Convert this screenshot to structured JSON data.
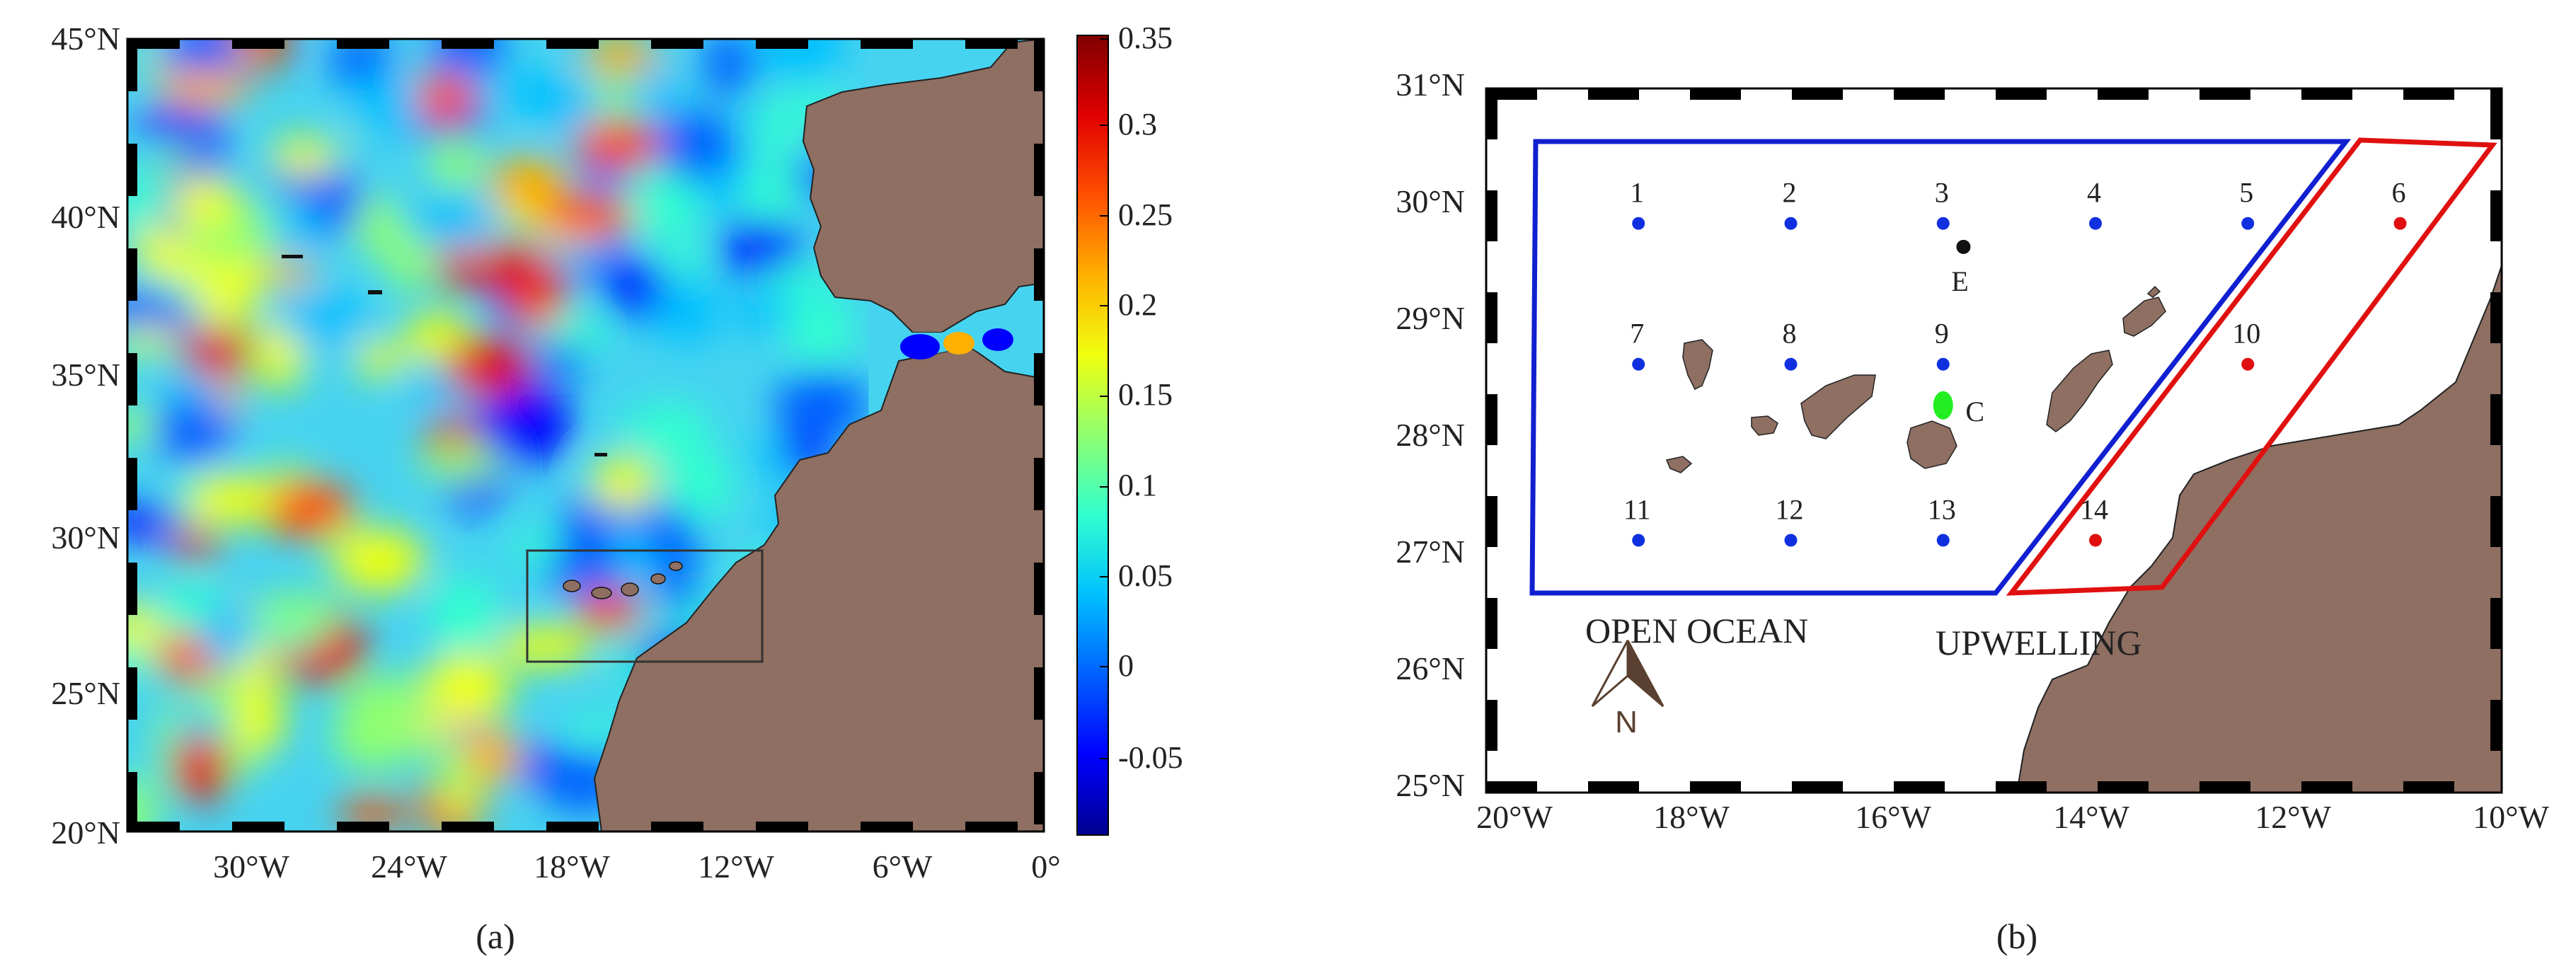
{
  "panel_a": {
    "caption": "(a)",
    "lat_labels": [
      "45°N",
      "40°N",
      "35°N",
      "30°N",
      "25°N",
      "20°N"
    ],
    "lon_labels": [
      "30°W",
      "24°W",
      "18°W",
      "12°W",
      "6°W",
      "0°"
    ],
    "colorbar_ticks": [
      "0.35",
      "0.3",
      "0.25",
      "0.2",
      "0.15",
      "0.1",
      "0.05",
      "0",
      "-0.05"
    ],
    "colormap": [
      "#00008f",
      "#0000ff",
      "#0060ff",
      "#00c0ff",
      "#30ffcf",
      "#90ff70",
      "#f0ff10",
      "#ffb000",
      "#ff5000",
      "#e00000",
      "#800000"
    ],
    "land_color": "#8e6f62"
  },
  "panel_b": {
    "caption": "(b)",
    "lat_labels": [
      "31°N",
      "30°N",
      "29°N",
      "28°N",
      "27°N",
      "26°N",
      "25°N"
    ],
    "lon_labels": [
      "20°W",
      "18°W",
      "16°W",
      "14°W",
      "12°W",
      "10°W"
    ],
    "stations": [
      {
        "label": "1",
        "lon": -18.5,
        "lat": 29.85,
        "color": "#1030e0"
      },
      {
        "label": "2",
        "lon": -17.0,
        "lat": 29.85,
        "color": "#1030e0"
      },
      {
        "label": "3",
        "lon": -15.5,
        "lat": 29.85,
        "color": "#1030e0"
      },
      {
        "label": "4",
        "lon": -14.0,
        "lat": 29.85,
        "color": "#1030e0"
      },
      {
        "label": "5",
        "lon": -12.5,
        "lat": 29.85,
        "color": "#1030e0"
      },
      {
        "label": "6",
        "lon": -11.0,
        "lat": 29.85,
        "color": "#e01010"
      },
      {
        "label": "7",
        "lon": -18.5,
        "lat": 28.65,
        "color": "#1030e0"
      },
      {
        "label": "8",
        "lon": -17.0,
        "lat": 28.65,
        "color": "#1030e0"
      },
      {
        "label": "9",
        "lon": -15.5,
        "lat": 28.65,
        "color": "#1030e0"
      },
      {
        "label": "10",
        "lon": -12.5,
        "lat": 28.65,
        "color": "#e01010"
      },
      {
        "label": "11",
        "lon": -18.5,
        "lat": 27.15,
        "color": "#1030e0"
      },
      {
        "label": "12",
        "lon": -17.0,
        "lat": 27.15,
        "color": "#1030e0"
      },
      {
        "label": "13",
        "lon": -15.5,
        "lat": 27.15,
        "color": "#1030e0"
      },
      {
        "label": "14",
        "lon": -14.0,
        "lat": 27.15,
        "color": "#e01010"
      }
    ],
    "point_e": {
      "label": "E",
      "lon": -15.3,
      "lat": 29.65,
      "color": "#111111"
    },
    "point_c": {
      "label": "C",
      "lon": -15.5,
      "lat": 28.3,
      "color": "#22ee22"
    },
    "region_open_ocean": {
      "label": "OPEN OCEAN",
      "color": "#1020d0"
    },
    "region_upwelling": {
      "label": "UPWELLING",
      "color": "#e01010"
    },
    "north_arrow_label": "N",
    "land_color": "#8e6f62"
  }
}
